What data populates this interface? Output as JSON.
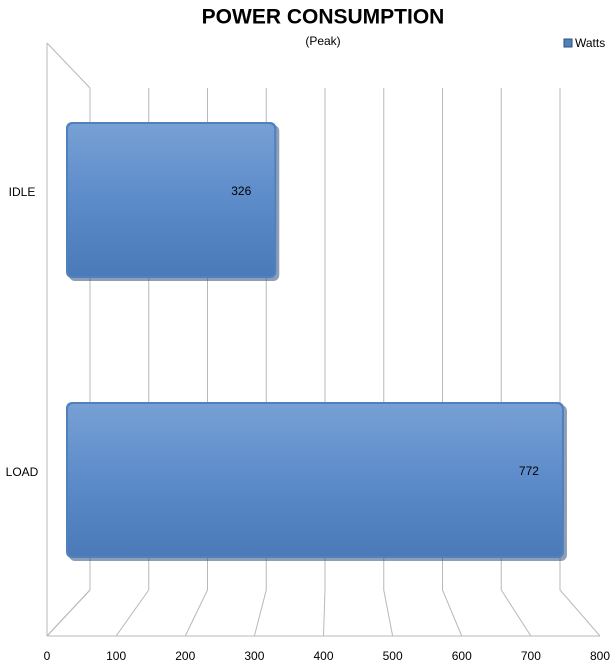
{
  "chart_data": {
    "type": "bar",
    "orientation": "horizontal",
    "title": "POWER CONSUMPTION",
    "subtitle": "(Peak)",
    "categories": [
      "IDLE",
      "LOAD"
    ],
    "series": [
      {
        "name": "Watts",
        "color": "#4f81bd",
        "values": [
          326,
          772
        ]
      }
    ],
    "xlim": [
      0,
      800
    ],
    "xticks": [
      0,
      100,
      200,
      300,
      400,
      500,
      600,
      700,
      800
    ],
    "grid": true,
    "legend": "top-right"
  }
}
